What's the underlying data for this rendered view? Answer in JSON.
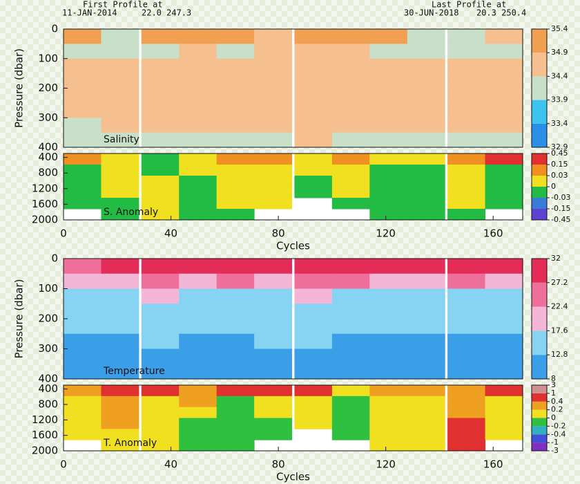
{
  "header": {
    "first_label": "First Profile at",
    "first_date": "11-JAN-2014",
    "first_pos": "22.0 247.3",
    "last_label": "Last Profile at",
    "last_date": "30-JUN-2018",
    "last_pos": "20.3 250.4"
  },
  "chart_data": [
    {
      "type": "heatmap",
      "label": "Salinity",
      "ylabel": "Pressure (dbar)",
      "xlim": [
        0,
        171
      ],
      "ylim": [
        0,
        400
      ],
      "yticks": [
        0,
        100,
        200,
        300,
        400
      ],
      "x": [
        7,
        21,
        36,
        50,
        64,
        78,
        93,
        107,
        121,
        135,
        150,
        164
      ],
      "y": [
        25,
        75,
        125,
        175,
        225,
        275,
        325,
        375
      ],
      "z": [
        [
          35.0,
          34.2,
          34.9,
          35.0,
          35.0,
          34.8,
          35.0,
          35.0,
          34.9,
          34.0,
          34.2,
          34.8
        ],
        [
          34.0,
          34.1,
          34.2,
          34.6,
          34.3,
          34.4,
          34.7,
          34.6,
          34.3,
          34.1,
          34.1,
          34.2
        ],
        [
          34.5,
          34.6,
          34.6,
          34.7,
          34.6,
          34.6,
          34.7,
          34.7,
          34.6,
          34.6,
          34.6,
          34.6
        ],
        [
          34.5,
          34.7,
          34.6,
          34.7,
          34.7,
          34.7,
          34.8,
          34.7,
          34.7,
          34.7,
          34.7,
          34.7
        ],
        [
          34.4,
          34.6,
          34.6,
          34.6,
          34.7,
          34.6,
          34.7,
          34.6,
          34.6,
          34.6,
          34.6,
          34.6
        ],
        [
          34.4,
          34.5,
          34.6,
          34.5,
          34.5,
          34.5,
          34.6,
          34.5,
          34.5,
          34.5,
          34.5,
          34.5
        ],
        [
          34.3,
          34.4,
          34.4,
          34.4,
          34.4,
          34.4,
          34.4,
          34.4,
          34.4,
          34.4,
          34.4,
          34.4
        ],
        [
          34.3,
          34.3,
          34.3,
          34.3,
          34.3,
          34.3,
          34.4,
          34.3,
          34.3,
          34.3,
          34.3,
          34.3
        ]
      ],
      "levels": [
        32.9,
        33.4,
        33.9,
        34.4,
        34.9,
        35.4
      ],
      "colors": [
        "#2b8fe8",
        "#3cc4f0",
        "#c8dfc8",
        "#f5bf90",
        "#f0a050"
      ]
    },
    {
      "type": "heatmap",
      "label": "S. Anomaly",
      "xlabel": "Cycles",
      "xlim": [
        0,
        171
      ],
      "ylim": [
        300,
        2000
      ],
      "yticks": [
        400,
        800,
        1200,
        1600,
        2000
      ],
      "xticks": [
        0,
        40,
        80,
        120,
        160
      ],
      "x": [
        7,
        21,
        36,
        50,
        64,
        78,
        93,
        107,
        121,
        135,
        150,
        164
      ],
      "y": [
        442,
        725,
        1008,
        1292,
        1575,
        1858
      ],
      "z": [
        [
          0.05,
          0.02,
          -0.01,
          0.02,
          0.1,
          0.04,
          0.02,
          0.05,
          0.01,
          0.02,
          0.03,
          0.2
        ],
        [
          -0.01,
          0.01,
          -0.01,
          0.01,
          0.01,
          0.02,
          0.01,
          0.01,
          -0.01,
          -0.01,
          0.01,
          -0.01
        ],
        [
          -0.01,
          0.01,
          0.02,
          -0.01,
          0.01,
          0.02,
          -0.01,
          0.01,
          -0.01,
          -0.01,
          0.01,
          -0.01
        ],
        [
          -0.01,
          0.02,
          0.01,
          -0.01,
          0.01,
          0.01,
          -0.01,
          0.01,
          -0.01,
          -0.01,
          0.01,
          -0.01
        ],
        [
          -0.01,
          -0.01,
          0.01,
          -0.01,
          0.01,
          0.01,
          null,
          -0.01,
          -0.01,
          -0.01,
          0.01,
          -0.01
        ],
        [
          null,
          -0.01,
          0.01,
          -0.01,
          -0.01,
          null,
          null,
          null,
          -0.01,
          -0.01,
          -0.01,
          null
        ]
      ],
      "levels": [
        -0.45,
        -0.15,
        -0.03,
        0,
        0.03,
        0.15,
        0.45
      ],
      "colors": [
        "#6040d0",
        "#3a7ad8",
        "#22bb44",
        "#f0e020",
        "#f09020",
        "#e03030"
      ]
    },
    {
      "type": "heatmap",
      "label": "Temperature",
      "ylabel": "Pressure (dbar)",
      "xlim": [
        0,
        171
      ],
      "ylim": [
        0,
        400
      ],
      "yticks": [
        0,
        100,
        200,
        300,
        400
      ],
      "x": [
        7,
        21,
        36,
        50,
        64,
        78,
        93,
        107,
        121,
        135,
        150,
        164
      ],
      "y": [
        25,
        75,
        125,
        175,
        225,
        275,
        325,
        375
      ],
      "z": [
        [
          27,
          28,
          29,
          28,
          29,
          29,
          30,
          29,
          28,
          28,
          29,
          28
        ],
        [
          21,
          22,
          24,
          20,
          23,
          22,
          24,
          23,
          20,
          21,
          23,
          22
        ],
        [
          17,
          17,
          18,
          16,
          17,
          17,
          18,
          17,
          16,
          16,
          17,
          17
        ],
        [
          15,
          15,
          16,
          14,
          15,
          15,
          16,
          15,
          14,
          14,
          15,
          15
        ],
        [
          13.5,
          13.5,
          14,
          13,
          13.5,
          14,
          14,
          13.5,
          13,
          13,
          13.5,
          13.5
        ],
        [
          12,
          12.5,
          13,
          12,
          12.5,
          13,
          13,
          12.5,
          12,
          12,
          12.5,
          12.5
        ],
        [
          11,
          11.5,
          12,
          11,
          11.5,
          12,
          12,
          11.5,
          11,
          11,
          11.5,
          11.5
        ],
        [
          10,
          10.5,
          11,
          10,
          10.5,
          11,
          11,
          10.5,
          10,
          10,
          10.5,
          10.5
        ]
      ],
      "levels": [
        8,
        12.8,
        17.6,
        22.4,
        27.2,
        32
      ],
      "colors": [
        "#3a9ee8",
        "#86d4f2",
        "#f4b6d6",
        "#ee6f9a",
        "#e32c57"
      ]
    },
    {
      "type": "heatmap",
      "label": "T. Anomaly",
      "xlabel": "Cycles",
      "xlim": [
        0,
        171
      ],
      "ylim": [
        300,
        2000
      ],
      "yticks": [
        400,
        800,
        1200,
        1600,
        2000
      ],
      "xticks": [
        0,
        40,
        80,
        120,
        160
      ],
      "x": [
        7,
        21,
        36,
        50,
        64,
        78,
        93,
        107,
        121,
        135,
        150,
        164
      ],
      "y": [
        442,
        725,
        1008,
        1292,
        1575,
        1858
      ],
      "z": [
        [
          0.3,
          0.5,
          0.6,
          0.3,
          0.5,
          0.6,
          0.5,
          0.1,
          0.3,
          0.2,
          0.3,
          0.5
        ],
        [
          0.1,
          0.3,
          0.1,
          0.2,
          -0.1,
          0.1,
          0.1,
          -0.1,
          0.1,
          0.1,
          0.3,
          0.1
        ],
        [
          0.1,
          0.3,
          0.1,
          0.1,
          -0.1,
          0.1,
          0.1,
          -0.1,
          0.1,
          0.1,
          0.3,
          0.1
        ],
        [
          0.1,
          0.3,
          0.1,
          -0.1,
          -0.1,
          -0.1,
          0.1,
          -0.1,
          0.1,
          0.1,
          0.5,
          0.1
        ],
        [
          0.1,
          0.1,
          0.1,
          -0.1,
          -0.1,
          -0.1,
          null,
          -0.1,
          0.1,
          0.1,
          0.5,
          0.1
        ],
        [
          null,
          0.1,
          0.1,
          -0.1,
          -0.1,
          null,
          null,
          null,
          0.1,
          0.1,
          0.5,
          null
        ]
      ],
      "levels": [
        -3,
        -1,
        -0.4,
        -0.2,
        0,
        0.2,
        0.4,
        1,
        3
      ],
      "colors": [
        "#8030c0",
        "#4050d8",
        "#30b0c0",
        "#30c040",
        "#f0e020",
        "#f0a020",
        "#e03030",
        "#d09090"
      ]
    }
  ]
}
